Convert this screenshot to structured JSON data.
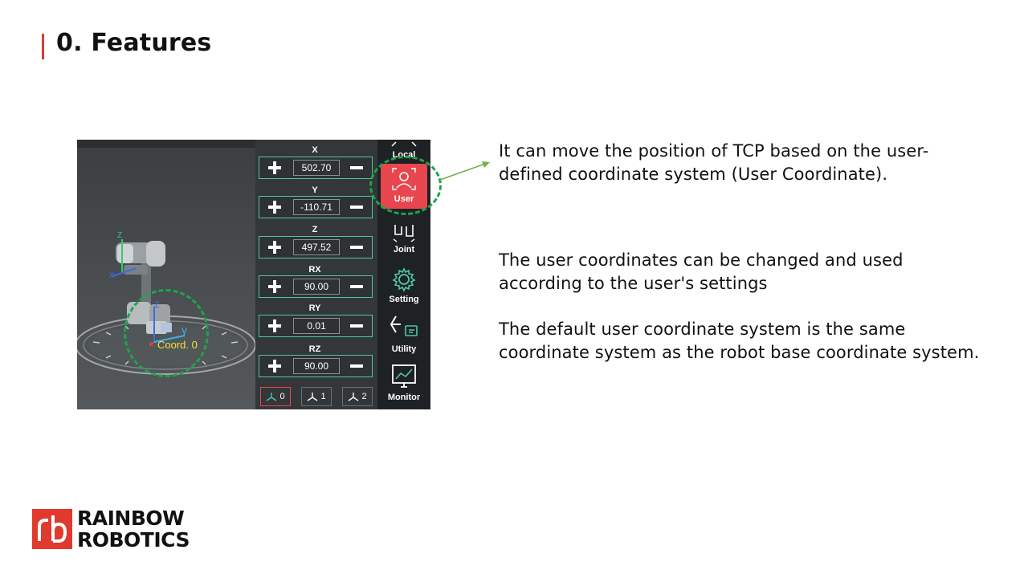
{
  "slide": {
    "title": "0. Features",
    "paragraphs": [
      "It can move the position of TCP based on the user-\ndefined coordinate system (User Coordinate).",
      "The user coordinates can be changed and used\naccording to the user's settings",
      "The default user coordinate system is the same\ncoordinate system as the robot base coordinate system."
    ]
  },
  "scene": {
    "coord_label": "Coord. 0",
    "axis_x": "X",
    "axis_y": "y",
    "axis_z": "Z",
    "base_x": "X",
    "base_y": "Y",
    "base_z": "Z"
  },
  "jog_panel": {
    "rows": [
      {
        "label": "X",
        "value": "502.70"
      },
      {
        "label": "Y",
        "value": "-110.71"
      },
      {
        "label": "Z",
        "value": "497.52"
      },
      {
        "label": "RX",
        "value": "90.00"
      },
      {
        "label": "RY",
        "value": "0.01"
      },
      {
        "label": "RZ",
        "value": "90.00"
      }
    ],
    "coord_buttons": [
      {
        "label": "0",
        "active": true
      },
      {
        "label": "1",
        "active": false
      },
      {
        "label": "2",
        "active": false
      }
    ]
  },
  "sidebar": {
    "items": [
      {
        "label": "Local",
        "icon": "expand-icon"
      },
      {
        "label": "User",
        "icon": "user-frame-icon",
        "active": true
      },
      {
        "label": "Joint",
        "icon": "joint-icon"
      },
      {
        "label": "Setting",
        "icon": "gear-icon"
      },
      {
        "label": "Utility",
        "icon": "utility-icon"
      },
      {
        "label": "Monitor",
        "icon": "monitor-icon"
      }
    ]
  },
  "logo": {
    "line1": "RAINBOW",
    "line2": "ROBOTICS",
    "mark": "rb"
  },
  "colors": {
    "accent_red": "#e03a2f",
    "user_active": "#e8464e",
    "highlight_green": "#1fa44a",
    "row_border": "#4ec7a8"
  }
}
